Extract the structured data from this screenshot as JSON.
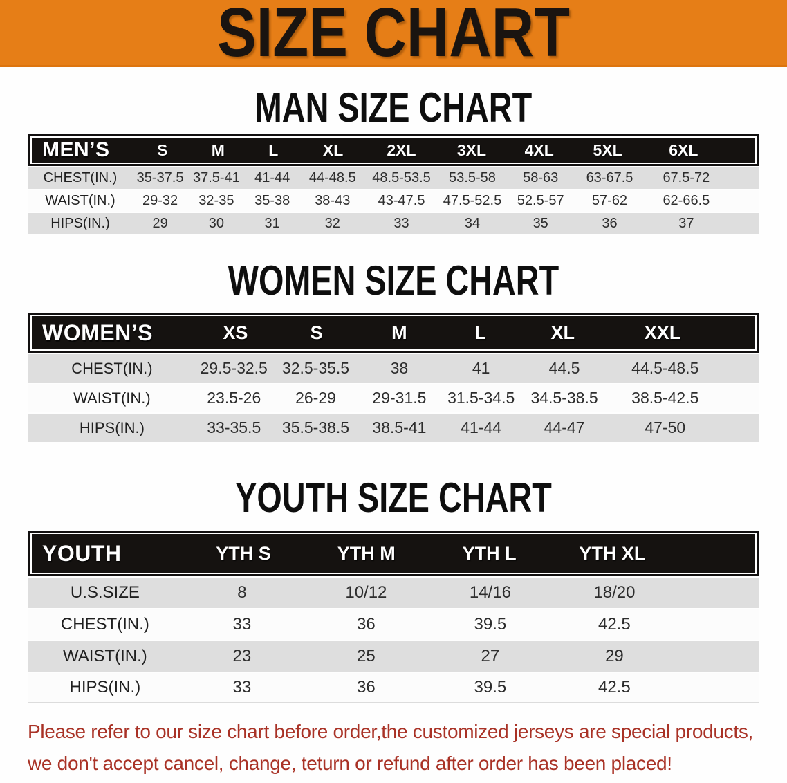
{
  "banner": {
    "title": "SIZE CHART"
  },
  "palette": {
    "banner_bg": "#E67E17",
    "header_bar_bg": "#151210",
    "row_shade_bg": "#DEDEDE",
    "notice_text": "#A93226"
  },
  "sections": {
    "men": {
      "heading": "MAN SIZE CHART",
      "header": [
        "MEN’S",
        "S",
        "M",
        "L",
        "XL",
        "2XL",
        "3XL",
        "4XL",
        "5XL",
        "6XL"
      ],
      "rows": [
        [
          "CHEST(IN.)",
          "35-37.5",
          "37.5-41",
          "41-44",
          "44-48.5",
          "48.5-53.5",
          "53.5-58",
          "58-63",
          "63-67.5",
          "67.5-72"
        ],
        [
          "WAIST(IN.)",
          "29-32",
          "32-35",
          "35-38",
          "38-43",
          "43-47.5",
          "47.5-52.5",
          "52.5-57",
          "57-62",
          "62-66.5"
        ],
        [
          "HIPS(IN.)",
          "29",
          "30",
          "31",
          "32",
          "33",
          "34",
          "35",
          "36",
          "37"
        ]
      ]
    },
    "women": {
      "heading": "WOMEN SIZE CHART",
      "header": [
        "WOMEN’S",
        "XS",
        "S",
        "M",
        "L",
        "XL",
        "XXL"
      ],
      "rows": [
        [
          "CHEST(IN.)",
          "29.5-32.5",
          "32.5-35.5",
          "38",
          "41",
          "44.5",
          "44.5-48.5"
        ],
        [
          "WAIST(IN.)",
          "23.5-26",
          "26-29",
          "29-31.5",
          "31.5-34.5",
          "34.5-38.5",
          "38.5-42.5"
        ],
        [
          "HIPS(IN.)",
          "33-35.5",
          "35.5-38.5",
          "38.5-41",
          "41-44",
          "44-47",
          "47-50"
        ]
      ]
    },
    "youth": {
      "heading": "YOUTH SIZE CHART",
      "header": [
        "YOUTH",
        "YTH S",
        "YTH M",
        "YTH L",
        "YTH XL"
      ],
      "rows": [
        [
          "U.S.SIZE",
          "8",
          "10/12",
          "14/16",
          "18/20"
        ],
        [
          "CHEST(IN.)",
          "33",
          "36",
          "39.5",
          "42.5"
        ],
        [
          "WAIST(IN.)",
          "23",
          "25",
          "27",
          "29"
        ],
        [
          "HIPS(IN.)",
          "33",
          "36",
          "39.5",
          "42.5"
        ]
      ]
    }
  },
  "footer": {
    "line1": "Please refer to our size chart before order,the customized jerseys are special products,",
    "line2": "we don't accept cancel, change, teturn or refund after order has been placed!"
  }
}
